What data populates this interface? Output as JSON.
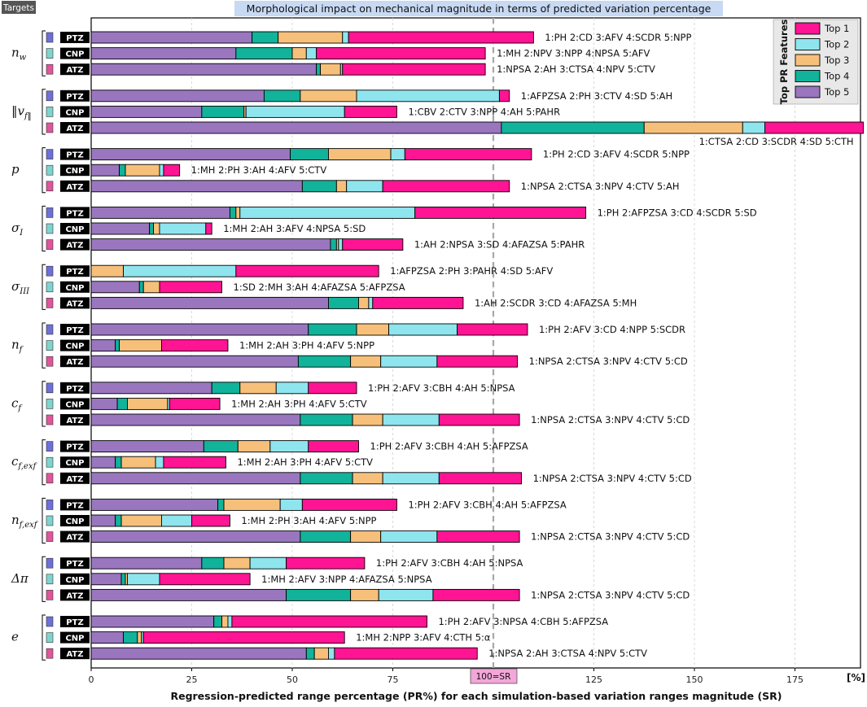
{
  "chart_data": {
    "type": "bar",
    "title": "Morphological impact on mechanical magnitude in terms of predicted variation percentage",
    "xlabel": "Regression-predicted range percentage (PR%) for each simulation-based variation ranges magnitude (SR)",
    "unit_label": "[%]",
    "corner_label": "Targets",
    "xlim": [
      0,
      192
    ],
    "xticks": [
      0,
      25,
      50,
      75,
      100,
      125,
      150,
      175
    ],
    "reference_line": {
      "value": 100,
      "label": "100=SR"
    },
    "legend": {
      "title": "Top PR Features",
      "position": "top-right",
      "entries": [
        {
          "name": "Top 1",
          "color": "#ff1493"
        },
        {
          "name": "Top 2",
          "color": "#8ee5ee"
        },
        {
          "name": "Top 3",
          "color": "#f7c07a"
        },
        {
          "name": "Top 4",
          "color": "#11b39a"
        },
        {
          "name": "Top 5",
          "color": "#9a76bf"
        }
      ]
    },
    "groups": [
      {
        "target": "n",
        "target_sub": "w",
        "bars": [
          {
            "config": "PTZ",
            "segments": [
              40,
              6.5,
              16,
              1.5,
              46
            ],
            "features": "1:PH 2:CD 3:AFV 4:SCDR 5:NPP"
          },
          {
            "config": "CNP",
            "segments": [
              36,
              14,
              3.5,
              2.5,
              42
            ],
            "features": "1:MH 2:NPV 3:NPP 4:NPSA 5:AFV"
          },
          {
            "config": "ATZ",
            "segments": [
              56,
              1,
              5,
              0.5,
              35.5
            ],
            "features": "1:NPSA 2:AH 3:CTSA 4:NPV 5:CTV"
          }
        ]
      },
      {
        "target": "‖v",
        "target_sub": "f‖",
        "bars": [
          {
            "config": "PTZ",
            "segments": [
              43,
              9,
              14,
              35.5,
              2.5
            ],
            "features": "1:AFPZSA 2:PH 3:CTV 4:SD 5:AH"
          },
          {
            "config": "CNP",
            "segments": [
              27.5,
              10.5,
              0.5,
              24.5,
              13
            ],
            "features": "1:CBV 2:CTV 3:NPP 4:AH 5:PAHR"
          },
          {
            "config": "ATZ",
            "segments": [
              102,
              35.5,
              24.5,
              5.5,
              24.5
            ],
            "features": "1:CTSA 2:CD 3:SCDR 4:SD 5:CTH"
          }
        ]
      },
      {
        "target": "p",
        "target_sub": "",
        "bars": [
          {
            "config": "PTZ",
            "segments": [
              49.5,
              9.5,
              15.5,
              3.5,
              31.5
            ],
            "features": "1:PH 2:CD 3:AFV 4:SCDR 5:NPP"
          },
          {
            "config": "CNP",
            "segments": [
              7,
              1.5,
              8.5,
              1,
              4
            ],
            "features": "1:MH 2:PH 3:AH 4:AFV 5:CTV"
          },
          {
            "config": "ATZ",
            "segments": [
              52.5,
              8.5,
              2.5,
              9,
              31.5
            ],
            "features": "1:NPSA 2:CTSA 3:NPV 4:CTV 5:AH"
          }
        ]
      },
      {
        "target": "σ",
        "target_sub": "I",
        "bars": [
          {
            "config": "PTZ",
            "segments": [
              34.5,
              1.5,
              1,
              43.5,
              42.5
            ],
            "features": "1:PH 2:AFPZSA 3:CD 4:SCDR 5:SD"
          },
          {
            "config": "CNP",
            "segments": [
              14.5,
              1,
              1.5,
              11.5,
              1.5
            ],
            "features": "1:MH 2:AH 3:AFV 4:NPSA 5:SD"
          },
          {
            "config": "ATZ",
            "segments": [
              59.5,
              1.5,
              0.5,
              1,
              15
            ],
            "features": "1:AH 2:NPSA 3:SD 4:AFAZSA 5:PAHR"
          }
        ]
      },
      {
        "target": "σ",
        "target_sub": "III",
        "bars": [
          {
            "config": "PTZ",
            "segments": [
              0,
              0,
              8,
              28,
              35.5
            ],
            "features": "1:AFPZSA 2:PH 3:PAHR 4:SD 5:AFV"
          },
          {
            "config": "CNP",
            "segments": [
              12,
              1,
              4,
              0,
              15.5
            ],
            "features": "1:SD 2:MH 3:AH 4:AFAZSA 5:AFPZSA"
          },
          {
            "config": "ATZ",
            "segments": [
              59,
              7.5,
              2.5,
              1,
              22.5
            ],
            "features": "1:AH 2:SCDR 3:CD 4:AFAZSA 5:MH"
          }
        ]
      },
      {
        "target": "n",
        "target_sub": "f",
        "bars": [
          {
            "config": "PTZ",
            "segments": [
              54,
              12,
              8,
              17,
              17.5
            ],
            "features": "1:PH 2:AFV 3:CD 4:NPP 5:SCDR"
          },
          {
            "config": "CNP",
            "segments": [
              6,
              1,
              10.5,
              0,
              16.5
            ],
            "features": "1:MH 2:AH 3:PH 4:AFV 5:NPP"
          },
          {
            "config": "ATZ",
            "segments": [
              51.5,
              13,
              7.5,
              14,
              20
            ],
            "features": "1:NPSA 2:CTSA 3:NPV 4:CTV 5:CD"
          }
        ]
      },
      {
        "target": "c",
        "target_sub": "f",
        "bars": [
          {
            "config": "PTZ",
            "segments": [
              30,
              7,
              9,
              8,
              12
            ],
            "features": "1:PH 2:AFV 3:CBH 4:AH 5:NPSA"
          },
          {
            "config": "CNP",
            "segments": [
              6.5,
              2.5,
              10,
              0.5,
              12.5
            ],
            "features": "1:MH 2:AH 3:PH 4:AFV 5:CTV"
          },
          {
            "config": "ATZ",
            "segments": [
              52,
              13,
              7.5,
              14,
              20
            ],
            "features": "1:NPSA 2:CTSA 3:NPV 4:CTV 5:CD"
          }
        ]
      },
      {
        "target": "c",
        "target_sub": "f,exf",
        "bars": [
          {
            "config": "PTZ",
            "segments": [
              28,
              8.5,
              8,
              9.5,
              12.5
            ],
            "features": "1:PH 2:AFV 3:CBH 4:AH 5:AFPZSA"
          },
          {
            "config": "CNP",
            "segments": [
              6,
              1.5,
              8.5,
              2,
              15.5
            ],
            "features": "1:MH 2:AH 3:PH 4:AFV 5:CTV"
          },
          {
            "config": "ATZ",
            "segments": [
              52,
              13,
              7.5,
              14,
              20.5
            ],
            "features": "1:NPSA 2:CTSA 3:NPV 4:CTV 5:CD"
          }
        ]
      },
      {
        "target": "n",
        "target_sub": "f,exf",
        "bars": [
          {
            "config": "PTZ",
            "segments": [
              31.5,
              1.5,
              14,
              5.5,
              23.5
            ],
            "features": "1:PH 2:AFV 3:CBH 4:AH 5:AFPZSA"
          },
          {
            "config": "CNP",
            "segments": [
              6,
              1.5,
              10,
              7.5,
              9.5
            ],
            "features": "1:MH 2:PH 3:AH 4:AFV 5:NPP"
          },
          {
            "config": "ATZ",
            "segments": [
              52,
              12.5,
              7.5,
              14,
              20.5
            ],
            "features": "1:NPSA 2:CTSA 3:NPV 4:CTV 5:CD"
          }
        ]
      },
      {
        "target": "Δπ",
        "target_sub": "",
        "bars": [
          {
            "config": "PTZ",
            "segments": [
              27.5,
              5.5,
              6.5,
              9,
              19.5
            ],
            "features": "1:PH 2:AFV 3:CBH 4:AH 5:NPSA"
          },
          {
            "config": "CNP",
            "segments": [
              7.5,
              1,
              0.5,
              8,
              22.5
            ],
            "features": "1:MH 2:AFV 3:NPP 4:AFAZSA 5:NPSA"
          },
          {
            "config": "ATZ",
            "segments": [
              48.5,
              16,
              7,
              13.5,
              21.5
            ],
            "features": "1:NPSA 2:CTSA 3:NPV 4:CTV 5:CD"
          }
        ]
      },
      {
        "target": "e",
        "target_sub": "",
        "bars": [
          {
            "config": "PTZ",
            "segments": [
              30.5,
              2,
              1.5,
              1,
              48.5
            ],
            "features": "1:PH 2:AFV 3:NPSA 4:CBH 5:AFPZSA"
          },
          {
            "config": "CNP",
            "segments": [
              8,
              3.5,
              1,
              0.5,
              50
            ],
            "features": "1:MH 2:NPP 3:AFV 4:CTH 5:α"
          },
          {
            "config": "ATZ",
            "segments": [
              53.5,
              2,
              3.5,
              1.5,
              35.5
            ],
            "features": "1:NPSA 2:AH 3:CTSA 4:NPV 5:CTV"
          }
        ]
      }
    ]
  }
}
